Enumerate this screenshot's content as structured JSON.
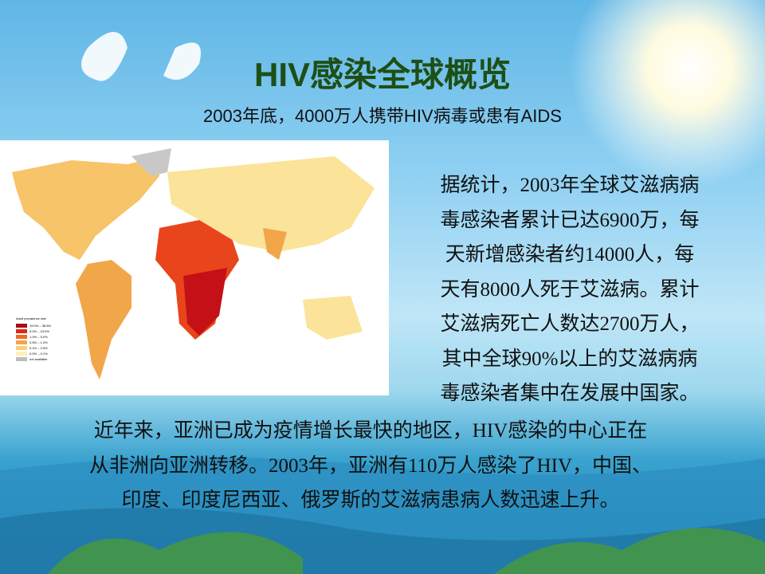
{
  "header": {
    "title": "HIV感染全球概览",
    "subtitle": "2003年底，4000万人携带HIV病毒或患有AIDS"
  },
  "map": {
    "legend": {
      "title": "Adult prevalence rate",
      "items": [
        "15.0% – 38.8%",
        "5.0% – 15.0%",
        "1.0% – 5.0%",
        "0.5% – 1.0%",
        "0.1% – 0.5%",
        "0.0% – 0.1%",
        "not available"
      ]
    }
  },
  "body": {
    "paragraph1": [
      "据统计，2003年全球艾滋病病",
      "毒感染者累计已达6900万，每",
      "天新增感染者约14000人，每",
      "天有8000人死于艾滋病。累计",
      "艾滋病死亡人数达2700万人，",
      "其中全球90%以上的艾滋病病",
      "毒感染者集中在发展中国家。"
    ],
    "paragraph2": [
      "近年来，亚洲已成为疫情增长最快的地区，HIV感染的中心正在",
      "从非洲向亚洲转移。2003年，亚洲有110万人感染了HIV，中国、",
      "印度、印度尼西亚、俄罗斯的艾滋病患病人数迅速上升。"
    ]
  }
}
